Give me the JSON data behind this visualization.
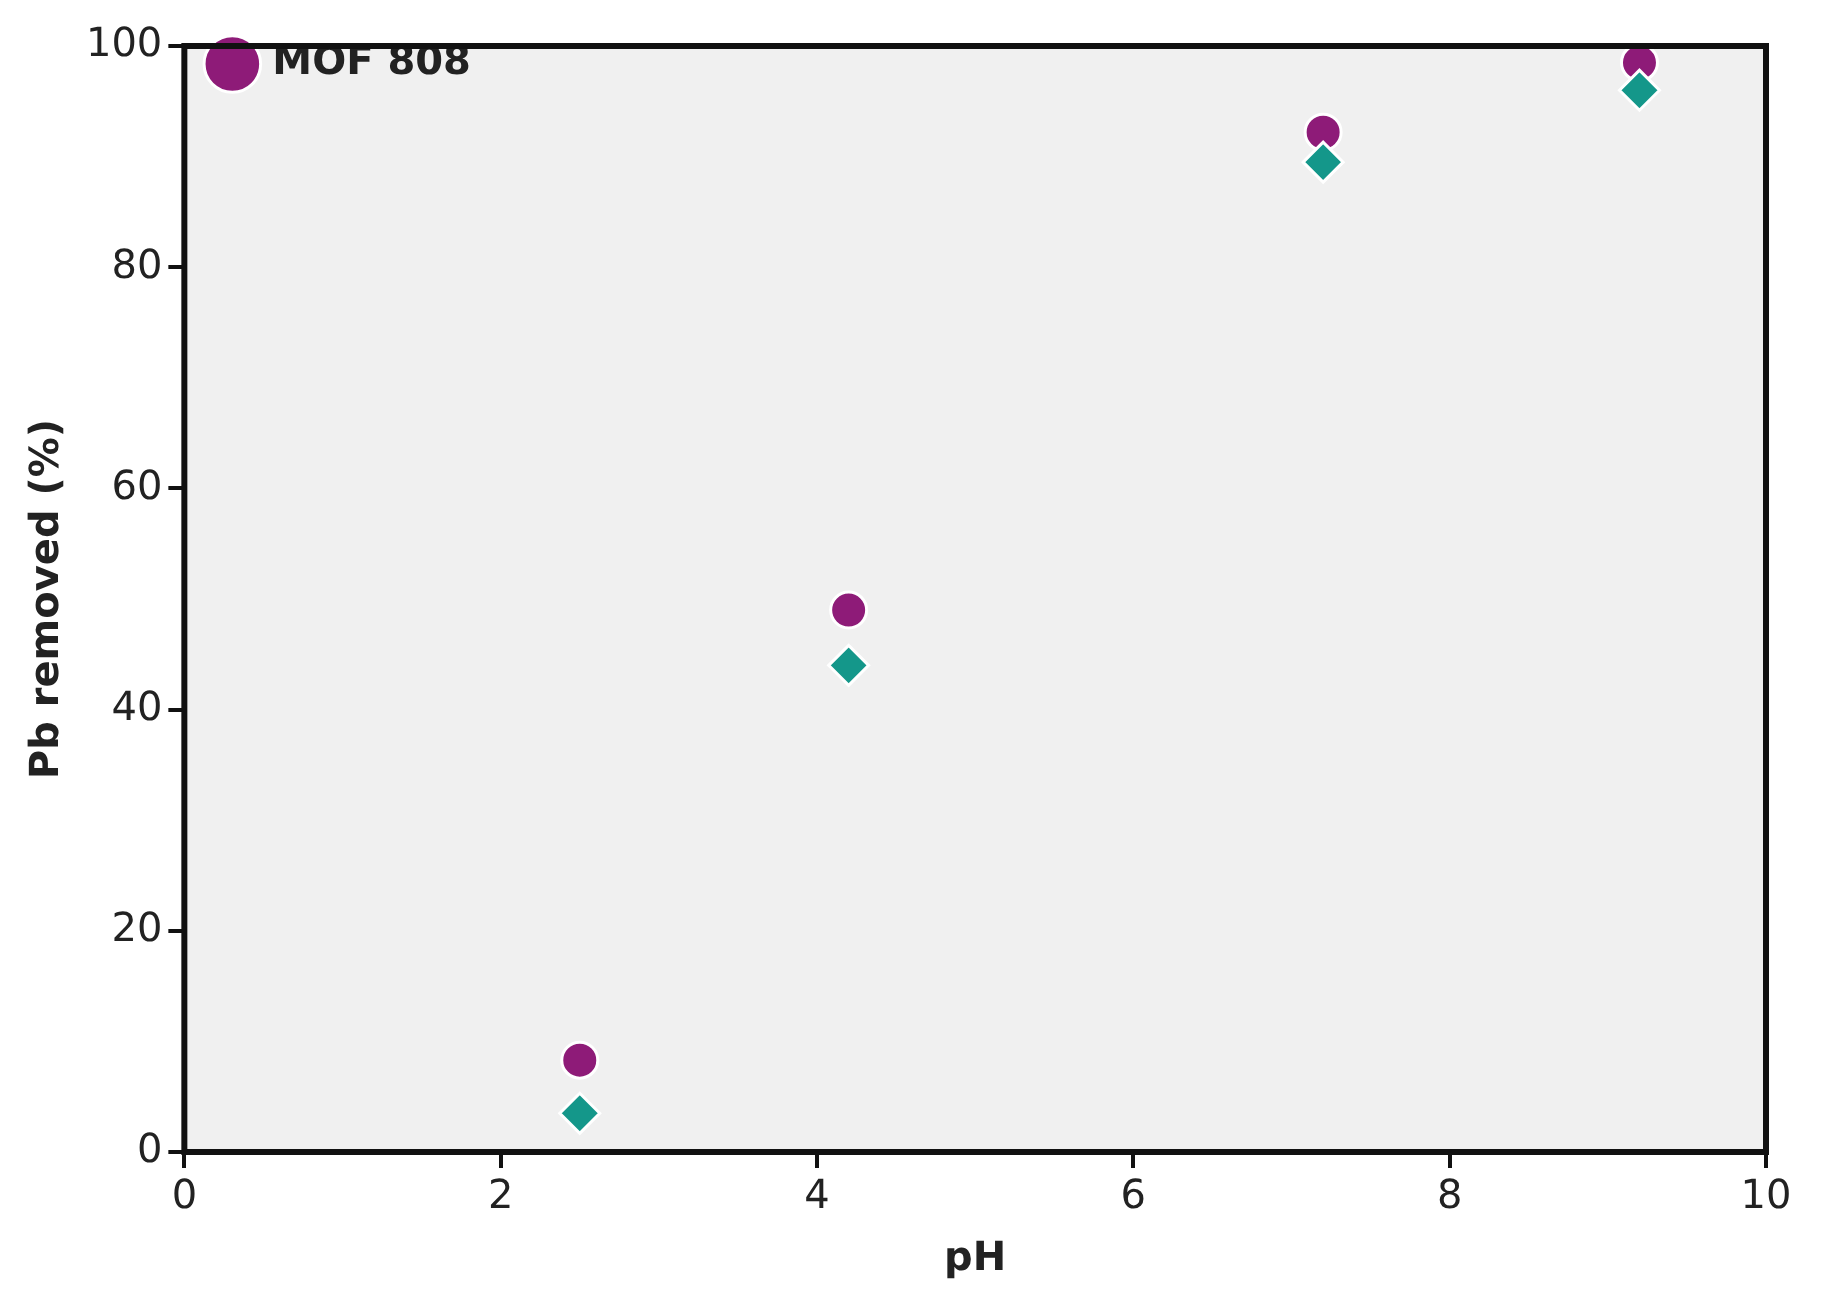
{
  "chart_data": {
    "type": "scatter",
    "xlabel": "pH",
    "ylabel": "Pb removed (%)",
    "xlim": [
      0,
      10
    ],
    "xticks": [
      0,
      2,
      4,
      6,
      8,
      10
    ],
    "ylim": [
      0,
      100
    ],
    "yticks": [
      0,
      20,
      40,
      60,
      80,
      100
    ],
    "grid": false,
    "legend": "top left",
    "series": [
      {
        "color": "#14978a",
        "marker": "diamond",
        "x": [
          2.5,
          4.2,
          7.2,
          9.2
        ],
        "values": [
          3.5,
          44,
          89.5,
          96
        ]
      },
      {
        "name": "MOF 808",
        "color": "#8e1b78",
        "marker": "circle",
        "x": [
          2.5,
          4.2,
          7.2,
          9.2
        ],
        "values": [
          8.3,
          49,
          92.2,
          98.5
        ]
      }
    ]
  }
}
